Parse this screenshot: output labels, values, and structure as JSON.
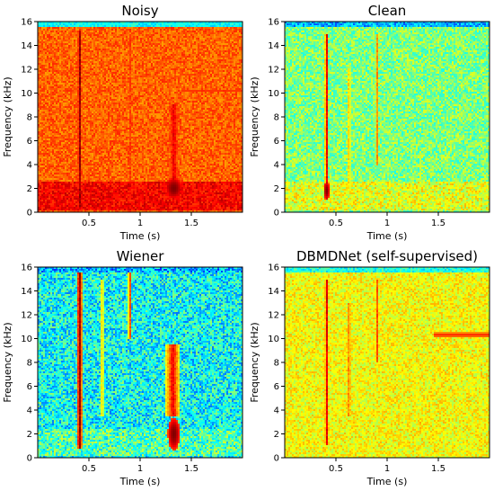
{
  "chart_data": [
    {
      "type": "heatmap",
      "title": "Noisy",
      "xlabel": "Time (s)",
      "ylabel": "Frequency (kHz)",
      "xlim": [
        0,
        2.0
      ],
      "ylim": [
        0,
        16
      ],
      "xticks": [
        0.5,
        1.0,
        1.5
      ],
      "xtick_labels": [
        "0.5",
        "1",
        "1.5"
      ],
      "yticks": [
        0,
        2,
        4,
        6,
        8,
        10,
        12,
        14,
        16
      ],
      "ytick_labels": [
        "0",
        "2",
        "4",
        "6",
        "8",
        "10",
        "12",
        "14",
        "16"
      ],
      "colormap": "jet",
      "background_level": 0.78,
      "noise_amplitude": 0.06,
      "band_limit_khz": 15.5,
      "above_band_level": 0.38,
      "low_band": {
        "from_khz": 0.2,
        "to_khz": 2.6,
        "level": 0.88
      },
      "vertical_events": [
        {
          "time_s": 0.41,
          "from_khz": 0.5,
          "to_khz": 15.3,
          "level": 1.0,
          "width_s": 0.02
        },
        {
          "time_s": 0.63,
          "from_khz": 1.2,
          "to_khz": 15.0,
          "level": 0.87,
          "width_s": 0.015
        },
        {
          "time_s": 0.9,
          "from_khz": 1.2,
          "to_khz": 15.0,
          "level": 0.87,
          "width_s": 0.015
        },
        {
          "time_s": 1.33,
          "from_khz": 1.5,
          "to_khz": 9.0,
          "level": 0.9,
          "width_s": 0.08
        }
      ],
      "horizontal_events": [
        {
          "freq_khz": 10.2,
          "from_s": 1.4,
          "to_s": 2.0,
          "level": 0.83
        }
      ],
      "blobs": [
        {
          "time_s": 1.33,
          "freq_khz": 2.0,
          "level": 1.0,
          "width_s": 0.09,
          "height_khz": 1.0
        }
      ]
    },
    {
      "type": "heatmap",
      "title": "Clean",
      "xlabel": "Time (s)",
      "ylabel": "Frequency (kHz)",
      "xlim": [
        0,
        2.0
      ],
      "ylim": [
        0,
        16
      ],
      "xticks": [
        0.5,
        1.0,
        1.5
      ],
      "xtick_labels": [
        "0.5",
        "1",
        "1.5"
      ],
      "yticks": [
        0,
        2,
        4,
        6,
        8,
        10,
        12,
        14,
        16
      ],
      "ytick_labels": [
        "0",
        "2",
        "4",
        "6",
        "8",
        "10",
        "12",
        "14",
        "16"
      ],
      "colormap": "jet",
      "background_level": 0.5,
      "noise_amplitude": 0.1,
      "band_limit_khz": 15.5,
      "above_band_level": 0.3,
      "low_band": {
        "from_khz": 0.2,
        "to_khz": 2.6,
        "level": 0.6
      },
      "vertical_events": [
        {
          "time_s": 0.41,
          "from_khz": 1.0,
          "to_khz": 15.0,
          "level": 0.92,
          "width_s": 0.015
        },
        {
          "time_s": 0.63,
          "from_khz": 2.0,
          "to_khz": 12.0,
          "level": 0.8,
          "width_s": 0.012
        },
        {
          "time_s": 0.9,
          "from_khz": 4.0,
          "to_khz": 15.0,
          "level": 0.8,
          "width_s": 0.012
        },
        {
          "time_s": 1.33,
          "from_khz": 1.0,
          "to_khz": 5.0,
          "level": 0.7,
          "width_s": 0.01
        }
      ],
      "horizontal_events": [],
      "blobs": [
        {
          "time_s": 0.41,
          "freq_khz": 1.8,
          "level": 1.0,
          "width_s": 0.03,
          "height_khz": 0.8
        }
      ]
    },
    {
      "type": "heatmap",
      "title": "Wiener",
      "xlabel": "Time (s)",
      "ylabel": "Frequency (kHz)",
      "xlim": [
        0,
        2.0
      ],
      "ylim": [
        0,
        16
      ],
      "xticks": [
        0.5,
        1.0,
        1.5
      ],
      "xtick_labels": [
        "0.5",
        "1",
        "1.5"
      ],
      "yticks": [
        0,
        2,
        4,
        6,
        8,
        10,
        12,
        14,
        16
      ],
      "ytick_labels": [
        "0",
        "2",
        "4",
        "6",
        "8",
        "10",
        "12",
        "14",
        "16"
      ],
      "colormap": "jet",
      "background_level": 0.38,
      "noise_amplitude": 0.14,
      "band_limit_khz": 15.5,
      "above_band_level": 0.3,
      "low_band": {
        "from_khz": 0.2,
        "to_khz": 2.4,
        "level": 0.45
      },
      "vertical_events": [
        {
          "time_s": 0.41,
          "from_khz": 0.8,
          "to_khz": 15.5,
          "level": 1.0,
          "width_s": 0.02
        },
        {
          "time_s": 0.63,
          "from_khz": 3.5,
          "to_khz": 15.0,
          "level": 0.75,
          "width_s": 0.015
        },
        {
          "time_s": 0.9,
          "from_khz": 10.0,
          "to_khz": 15.5,
          "level": 0.85,
          "width_s": 0.015
        },
        {
          "time_s": 1.32,
          "from_khz": 3.5,
          "to_khz": 9.5,
          "level": 0.9,
          "width_s": 0.06
        }
      ],
      "horizontal_events": [],
      "blobs": [
        {
          "time_s": 1.33,
          "freq_khz": 2.0,
          "level": 1.0,
          "width_s": 0.06,
          "height_khz": 1.4
        }
      ]
    },
    {
      "type": "heatmap",
      "title": "DBMDNet (self-supervised)",
      "xlabel": "Time (s)",
      "ylabel": "Frequency (kHz)",
      "xlim": [
        0,
        2.0
      ],
      "ylim": [
        0,
        16
      ],
      "xticks": [
        0.5,
        1.0,
        1.5
      ],
      "xtick_labels": [
        "0.5",
        "1",
        "1.5"
      ],
      "yticks": [
        0,
        2,
        4,
        6,
        8,
        10,
        12,
        14,
        16
      ],
      "ytick_labels": [
        "0",
        "2",
        "4",
        "6",
        "8",
        "10",
        "12",
        "14",
        "16"
      ],
      "colormap": "jet",
      "background_level": 0.62,
      "noise_amplitude": 0.08,
      "band_limit_khz": 15.5,
      "above_band_level": 0.4,
      "low_band": {
        "from_khz": 0.2,
        "to_khz": 2.4,
        "level": 0.6
      },
      "vertical_events": [
        {
          "time_s": 0.41,
          "from_khz": 1.0,
          "to_khz": 15.0,
          "level": 0.93,
          "width_s": 0.015
        },
        {
          "time_s": 0.63,
          "from_khz": 3.5,
          "to_khz": 13.0,
          "level": 0.85,
          "width_s": 0.015
        },
        {
          "time_s": 0.9,
          "from_khz": 8.0,
          "to_khz": 15.0,
          "level": 0.85,
          "width_s": 0.015
        },
        {
          "time_s": 1.33,
          "from_khz": 2.0,
          "to_khz": 3.0,
          "level": 0.75,
          "width_s": 0.02
        }
      ],
      "horizontal_events": [
        {
          "freq_khz": 10.3,
          "from_s": 1.45,
          "to_s": 2.0,
          "level": 0.85
        }
      ],
      "blobs": []
    }
  ]
}
